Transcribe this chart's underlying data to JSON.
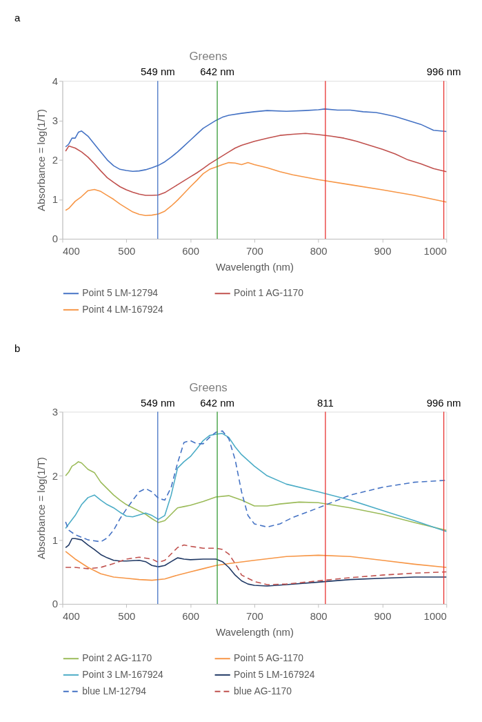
{
  "chart_data": [
    {
      "type": "line",
      "title": "a",
      "annotations": [
        "Greens"
      ],
      "xlabel": "Wavelength (nm)",
      "ylabel": "Absorbance = log(1/T)",
      "xlim": [
        400,
        1000
      ],
      "xticks": [
        400,
        500,
        600,
        700,
        800,
        900,
        1000
      ],
      "ylim": [
        0,
        4
      ],
      "yticks": [
        0,
        1,
        2,
        3,
        4
      ],
      "grid": false,
      "legend": "bottom",
      "line_style": "solid",
      "ref_lines": [
        {
          "axis": "x",
          "value": 549,
          "label": "549 nm",
          "color": "#4472c4"
        },
        {
          "axis": "x",
          "value": 642,
          "label": "642 nm",
          "color": "#339933"
        },
        {
          "axis": "x",
          "value": 811,
          "label": null,
          "color": "#e8312f"
        },
        {
          "axis": "x",
          "value": 996,
          "label": "996 nm",
          "color": "#e8312f"
        }
      ],
      "series": [
        {
          "name": "Point 5 LM-12794",
          "color": "#4472c4",
          "x": [
            405,
            410,
            415,
            420,
            425,
            430,
            440,
            450,
            460,
            470,
            480,
            490,
            500,
            510,
            520,
            530,
            540,
            550,
            560,
            570,
            580,
            590,
            600,
            610,
            620,
            630,
            640,
            650,
            660,
            680,
            700,
            720,
            750,
            780,
            800,
            810,
            830,
            850,
            870,
            890,
            900,
            920,
            940,
            960,
            980,
            1000
          ],
          "values": [
            2.33,
            2.4,
            2.55,
            2.55,
            2.7,
            2.73,
            2.6,
            2.4,
            2.2,
            2.0,
            1.85,
            1.76,
            1.73,
            1.71,
            1.72,
            1.75,
            1.8,
            1.86,
            1.95,
            2.07,
            2.2,
            2.35,
            2.5,
            2.65,
            2.8,
            2.9,
            3.0,
            3.08,
            3.13,
            3.18,
            3.22,
            3.25,
            3.23,
            3.25,
            3.27,
            3.29,
            3.26,
            3.26,
            3.22,
            3.2,
            3.17,
            3.1,
            3.0,
            2.9,
            2.75,
            2.72
          ]
        },
        {
          "name": "Point 1 AG-1170",
          "color": "#c0504d",
          "x": [
            405,
            410,
            420,
            430,
            440,
            450,
            460,
            470,
            480,
            490,
            500,
            510,
            520,
            530,
            540,
            550,
            560,
            570,
            580,
            590,
            600,
            610,
            620,
            630,
            640,
            650,
            660,
            670,
            680,
            700,
            720,
            740,
            760,
            780,
            800,
            820,
            840,
            860,
            880,
            900,
            920,
            940,
            960,
            980,
            1000
          ],
          "values": [
            2.22,
            2.35,
            2.3,
            2.2,
            2.07,
            1.9,
            1.72,
            1.55,
            1.43,
            1.32,
            1.24,
            1.18,
            1.13,
            1.1,
            1.1,
            1.11,
            1.17,
            1.27,
            1.37,
            1.47,
            1.57,
            1.67,
            1.78,
            1.9,
            2.0,
            2.1,
            2.2,
            2.3,
            2.37,
            2.47,
            2.55,
            2.62,
            2.65,
            2.67,
            2.64,
            2.6,
            2.55,
            2.47,
            2.37,
            2.27,
            2.15,
            2.0,
            1.9,
            1.78,
            1.7
          ]
        },
        {
          "name": "Point 4 LM-167924",
          "color": "#f79646",
          "x": [
            405,
            410,
            420,
            430,
            440,
            450,
            460,
            470,
            480,
            490,
            500,
            510,
            520,
            530,
            540,
            550,
            560,
            570,
            580,
            590,
            600,
            610,
            620,
            630,
            640,
            650,
            660,
            670,
            680,
            690,
            700,
            720,
            740,
            760,
            780,
            800,
            850,
            900,
            950,
            1000
          ],
          "values": [
            0.72,
            0.77,
            0.95,
            1.07,
            1.22,
            1.25,
            1.2,
            1.1,
            1.0,
            0.88,
            0.78,
            0.68,
            0.62,
            0.59,
            0.6,
            0.63,
            0.7,
            0.83,
            0.98,
            1.15,
            1.32,
            1.48,
            1.65,
            1.76,
            1.82,
            1.88,
            1.93,
            1.92,
            1.88,
            1.93,
            1.88,
            1.8,
            1.7,
            1.62,
            1.56,
            1.5,
            1.37,
            1.24,
            1.1,
            0.93
          ]
        }
      ]
    },
    {
      "type": "line",
      "title": "b",
      "annotations": [
        "Greens"
      ],
      "xlabel": "Wavelength (nm)",
      "ylabel": "Absorbance = log(1/T)",
      "xlim": [
        400,
        1000
      ],
      "xticks": [
        400,
        500,
        600,
        700,
        800,
        900,
        1000
      ],
      "ylim": [
        0,
        3
      ],
      "yticks": [
        0,
        1,
        2,
        3
      ],
      "grid": false,
      "legend": "bottom",
      "ref_lines": [
        {
          "axis": "x",
          "value": 549,
          "label": "549 nm",
          "color": "#4472c4"
        },
        {
          "axis": "x",
          "value": 642,
          "label": "642 nm",
          "color": "#339933"
        },
        {
          "axis": "x",
          "value": 811,
          "label": "811",
          "color": "#e8312f"
        },
        {
          "axis": "x",
          "value": 996,
          "label": "996 nm",
          "color": "#e8312f"
        }
      ],
      "series": [
        {
          "name": "Point 2 AG-1170",
          "color": "#9bbb59",
          "line_style": "solid",
          "x": [
            405,
            410,
            415,
            420,
            425,
            430,
            440,
            450,
            460,
            470,
            480,
            490,
            500,
            510,
            520,
            530,
            540,
            550,
            560,
            570,
            580,
            590,
            600,
            620,
            640,
            660,
            680,
            700,
            720,
            740,
            770,
            800,
            850,
            900,
            950,
            1000
          ],
          "values": [
            2.0,
            2.06,
            2.15,
            2.18,
            2.22,
            2.2,
            2.1,
            2.05,
            1.9,
            1.8,
            1.7,
            1.62,
            1.55,
            1.5,
            1.45,
            1.4,
            1.33,
            1.27,
            1.3,
            1.4,
            1.5,
            1.52,
            1.54,
            1.6,
            1.67,
            1.69,
            1.62,
            1.53,
            1.53,
            1.56,
            1.59,
            1.58,
            1.5,
            1.4,
            1.27,
            1.15
          ]
        },
        {
          "name": "Point 5 AG-1170",
          "color": "#f79646",
          "line_style": "solid",
          "x": [
            405,
            420,
            440,
            460,
            480,
            500,
            520,
            540,
            560,
            580,
            600,
            620,
            640,
            660,
            700,
            750,
            800,
            850,
            900,
            950,
            1000
          ],
          "values": [
            0.82,
            0.7,
            0.57,
            0.47,
            0.42,
            0.4,
            0.38,
            0.37,
            0.39,
            0.45,
            0.5,
            0.55,
            0.6,
            0.63,
            0.68,
            0.74,
            0.76,
            0.74,
            0.68,
            0.62,
            0.57
          ]
        },
        {
          "name": "Point 3 LM-167924",
          "color": "#4bacc6",
          "line_style": "solid",
          "x": [
            405,
            410,
            420,
            430,
            440,
            450,
            460,
            470,
            480,
            490,
            500,
            510,
            520,
            530,
            540,
            550,
            560,
            570,
            580,
            590,
            600,
            610,
            620,
            630,
            640,
            650,
            660,
            670,
            680,
            700,
            720,
            750,
            800,
            850,
            900,
            950,
            1000
          ],
          "values": [
            1.18,
            1.25,
            1.38,
            1.55,
            1.66,
            1.7,
            1.62,
            1.55,
            1.5,
            1.43,
            1.37,
            1.36,
            1.39,
            1.42,
            1.38,
            1.32,
            1.38,
            1.7,
            2.12,
            2.22,
            2.3,
            2.42,
            2.55,
            2.63,
            2.65,
            2.66,
            2.6,
            2.45,
            2.33,
            2.15,
            2.0,
            1.87,
            1.75,
            1.62,
            1.46,
            1.3,
            1.13
          ]
        },
        {
          "name": "Point 5 LM-167924",
          "color": "#1f3864",
          "line_style": "solid",
          "x": [
            405,
            410,
            415,
            420,
            430,
            440,
            450,
            460,
            470,
            480,
            490,
            500,
            520,
            530,
            540,
            550,
            560,
            570,
            580,
            590,
            600,
            620,
            640,
            650,
            660,
            670,
            680,
            690,
            700,
            720,
            750,
            800,
            850,
            900,
            950,
            1000
          ],
          "values": [
            0.88,
            0.92,
            1.02,
            1.02,
            1.0,
            0.92,
            0.85,
            0.77,
            0.72,
            0.68,
            0.67,
            0.67,
            0.68,
            0.66,
            0.6,
            0.58,
            0.6,
            0.66,
            0.72,
            0.7,
            0.69,
            0.7,
            0.7,
            0.66,
            0.57,
            0.45,
            0.36,
            0.31,
            0.29,
            0.28,
            0.3,
            0.34,
            0.38,
            0.4,
            0.42,
            0.42
          ]
        },
        {
          "name": "blue LM-12794",
          "color": "#4472c4",
          "line_style": "dashed",
          "x": [
            405,
            410,
            420,
            440,
            460,
            470,
            480,
            490,
            500,
            510,
            520,
            530,
            540,
            550,
            560,
            570,
            580,
            590,
            600,
            610,
            620,
            630,
            640,
            650,
            660,
            670,
            680,
            690,
            700,
            720,
            740,
            760,
            800,
            850,
            900,
            950,
            1000
          ],
          "values": [
            1.28,
            1.15,
            1.08,
            1.0,
            0.97,
            1.03,
            1.15,
            1.33,
            1.48,
            1.62,
            1.75,
            1.8,
            1.75,
            1.65,
            1.62,
            1.82,
            2.2,
            2.52,
            2.55,
            2.5,
            2.5,
            2.6,
            2.68,
            2.7,
            2.58,
            2.25,
            1.75,
            1.38,
            1.25,
            1.2,
            1.25,
            1.35,
            1.5,
            1.7,
            1.82,
            1.9,
            1.93
          ]
        },
        {
          "name": "blue AG-1170",
          "color": "#c0504d",
          "line_style": "dashed",
          "x": [
            405,
            420,
            440,
            460,
            480,
            500,
            520,
            540,
            550,
            560,
            570,
            580,
            590,
            600,
            620,
            640,
            650,
            660,
            670,
            680,
            700,
            720,
            750,
            800,
            850,
            900,
            950,
            1000
          ],
          "values": [
            0.57,
            0.57,
            0.55,
            0.57,
            0.63,
            0.7,
            0.73,
            0.7,
            0.65,
            0.68,
            0.78,
            0.88,
            0.92,
            0.9,
            0.87,
            0.87,
            0.85,
            0.78,
            0.63,
            0.45,
            0.35,
            0.3,
            0.31,
            0.36,
            0.41,
            0.45,
            0.48,
            0.5
          ]
        }
      ]
    }
  ]
}
